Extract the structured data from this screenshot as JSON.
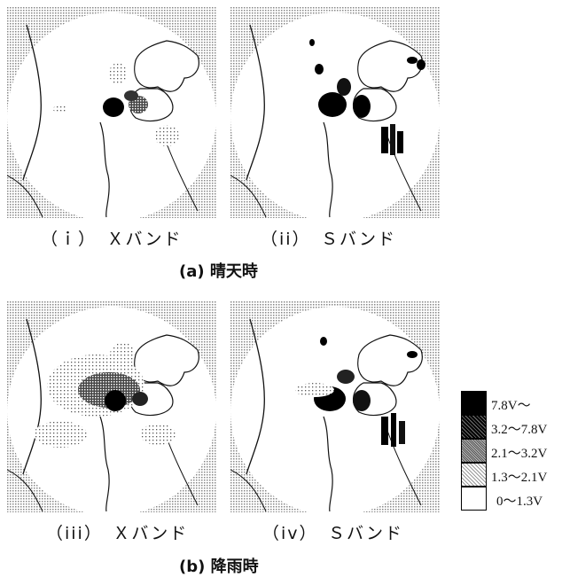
{
  "panels": [
    {
      "id": "i",
      "caption": "（ｉ）　Ｘバンド"
    },
    {
      "id": "ii",
      "caption": "（ii）　Ｓバンド"
    },
    {
      "id": "iii",
      "caption": "（iii）　Ｘバンド"
    },
    {
      "id": "iv",
      "caption": "（iv）　Ｓバンド"
    }
  ],
  "groups": {
    "a": "(a) 晴天時",
    "b": "(b) 降雨時"
  },
  "legend": {
    "items": [
      {
        "label": "7.8V〜",
        "color": "#000000"
      },
      {
        "label": "3.2〜7.8V",
        "color": "#3a3a3a"
      },
      {
        "label": "2.1〜3.2V",
        "color": "#8a8a8a"
      },
      {
        "label": "1.3〜2.1V",
        "color": "#d2d2d2"
      },
      {
        "label": "0〜1.3V",
        "color": "#ffffff"
      }
    ]
  }
}
